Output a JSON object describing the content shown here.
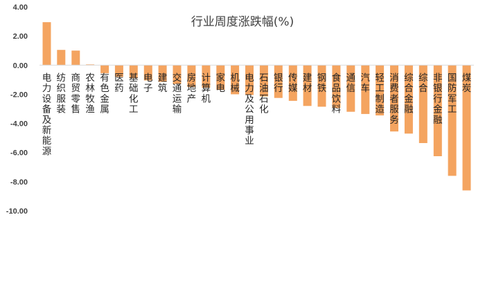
{
  "chart_data": {
    "type": "bar",
    "title": "行业周度涨跌幅(%)",
    "xlabel": "",
    "ylabel": "",
    "ylim": [
      -10,
      4
    ],
    "yticks": [
      "4.00",
      "2.00",
      "0.00",
      "-2.00",
      "-4.00",
      "-6.00",
      "-8.00",
      "-10.00"
    ],
    "grid": false,
    "legend": "none",
    "bar_color": "#F4A460",
    "categories": [
      "电力设备及新能源",
      "纺织服装",
      "商贸零售",
      "农林牧渔",
      "有色金属",
      "医药",
      "基础化工",
      "电子",
      "建筑",
      "交通运输",
      "房地产",
      "计算机",
      "家电",
      "机械",
      "电力及公用事业",
      "石油石化",
      "银行",
      "传媒",
      "建材",
      "钢铁",
      "食品饮料",
      "通信",
      "汽车",
      "轻工制造",
      "消费者服务",
      "综合金融",
      "综合",
      "非银行金融",
      "国防军工",
      "煤炭"
    ],
    "values": [
      2.95,
      1.05,
      1.0,
      0.05,
      -0.55,
      -0.8,
      -0.9,
      -1.05,
      -1.15,
      -1.3,
      -1.5,
      -1.55,
      -1.7,
      -2.0,
      -2.05,
      -2.15,
      -2.25,
      -2.45,
      -2.8,
      -2.85,
      -2.95,
      -3.2,
      -3.35,
      -3.45,
      -4.55,
      -4.7,
      -5.35,
      -6.25,
      -7.6,
      -8.6
    ]
  }
}
